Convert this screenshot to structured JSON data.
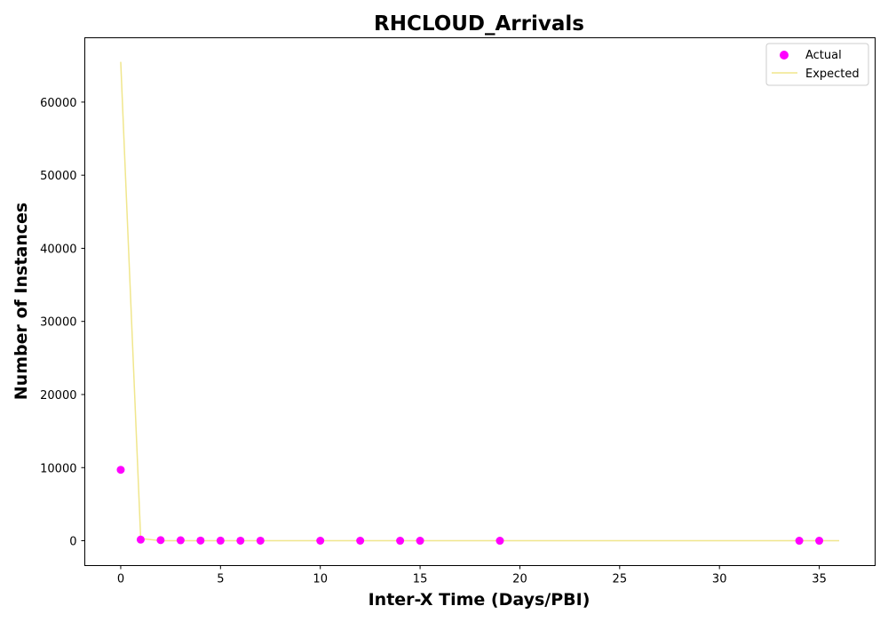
{
  "chart_data": {
    "type": "scatter",
    "title": "RHCLOUD_Arrivals",
    "xlabel": "Inter-X Time (Days/PBI)",
    "ylabel": "Number of Instances",
    "xlim": [
      -1.8,
      37.8
    ],
    "ylim": [
      -3400,
      68800
    ],
    "x_ticks": [
      0,
      5,
      10,
      15,
      20,
      25,
      30,
      35
    ],
    "y_ticks": [
      0,
      10000,
      20000,
      30000,
      40000,
      50000,
      60000
    ],
    "grid": false,
    "legend": {
      "position": "top-right"
    },
    "series": [
      {
        "name": "Actual",
        "kind": "scatter",
        "color": "#ff00ff",
        "x": [
          0,
          1,
          2,
          3,
          4,
          5,
          6,
          7,
          10,
          12,
          14,
          15,
          19,
          34,
          35
        ],
        "y": [
          9700,
          150,
          80,
          60,
          20,
          15,
          10,
          5,
          3,
          3,
          2,
          2,
          1,
          1,
          1
        ]
      },
      {
        "name": "Expected",
        "kind": "line",
        "color": "#f0e68c",
        "x": [
          0,
          1,
          2,
          3,
          4,
          5,
          6,
          7,
          8,
          9,
          10,
          12,
          15,
          20,
          25,
          30,
          36
        ],
        "y": [
          65500,
          300,
          5,
          1,
          0,
          0,
          0,
          0,
          0,
          0,
          0,
          0,
          0,
          0,
          0,
          0,
          0
        ]
      }
    ]
  }
}
